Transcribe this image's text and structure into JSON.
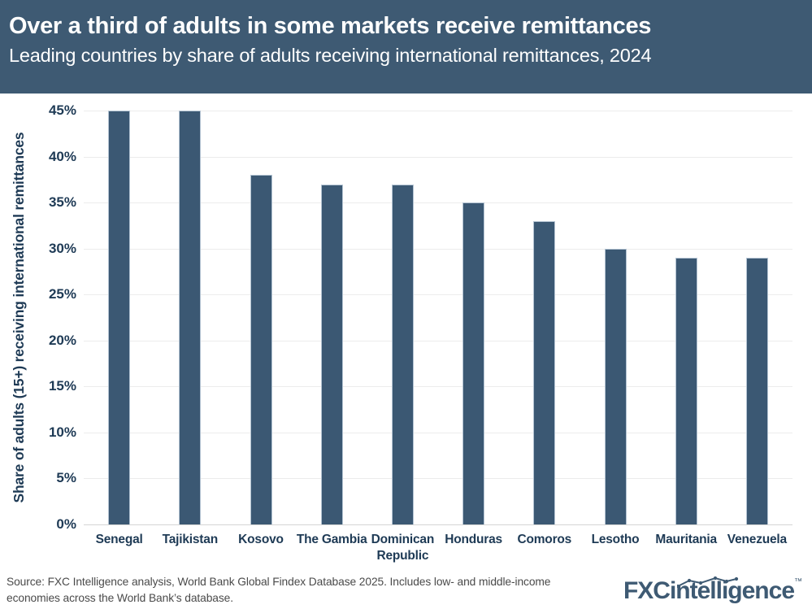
{
  "header": {
    "title": "Over a third of adults in some markets receive remittances",
    "subtitle": "Leading countries by share of adults receiving international remittances, 2024"
  },
  "chart_data": {
    "type": "bar",
    "title": "Over a third of adults in some markets receive remittances",
    "subtitle": "Leading countries by share of adults receiving international remittances, 2024",
    "categories": [
      "Senegal",
      "Tajikistan",
      "Kosovo",
      "The Gambia",
      "Dominican Republic",
      "Honduras",
      "Comoros",
      "Lesotho",
      "Mauritania",
      "Venezuela"
    ],
    "values": [
      45,
      45,
      38,
      37,
      37,
      35,
      33,
      30,
      29,
      29
    ],
    "value_suffix": "%",
    "xlabel": "",
    "ylabel": "Share of adults (15+) receiving international remittances",
    "ylim": [
      0,
      45
    ],
    "ytick_step": 5,
    "ytick_suffix": "%",
    "grid": true,
    "legend_position": "none",
    "bar_color": "#3B5873"
  },
  "footer": {
    "source_line1": "Source: FXC Intelligence analysis, World Bank Global Findex Database 2025. Includes low- and middle-income",
    "source_line2": "economies across the World Bank’s database.",
    "logo_fxc": "FXC",
    "logo_rest": "intelligence",
    "logo_tm": "™"
  },
  "colors": {
    "header_bg": "#3E5A73",
    "header_text": "#FFFFFF",
    "bar": "#3B5873",
    "bar_edge": "#B3C3D2",
    "axis_text": "#1E3A55",
    "gridline": "#ECECEC",
    "axis_line": "#D4D4D4",
    "source_text": "#4A4A4A",
    "logo": "#3E5A73"
  }
}
